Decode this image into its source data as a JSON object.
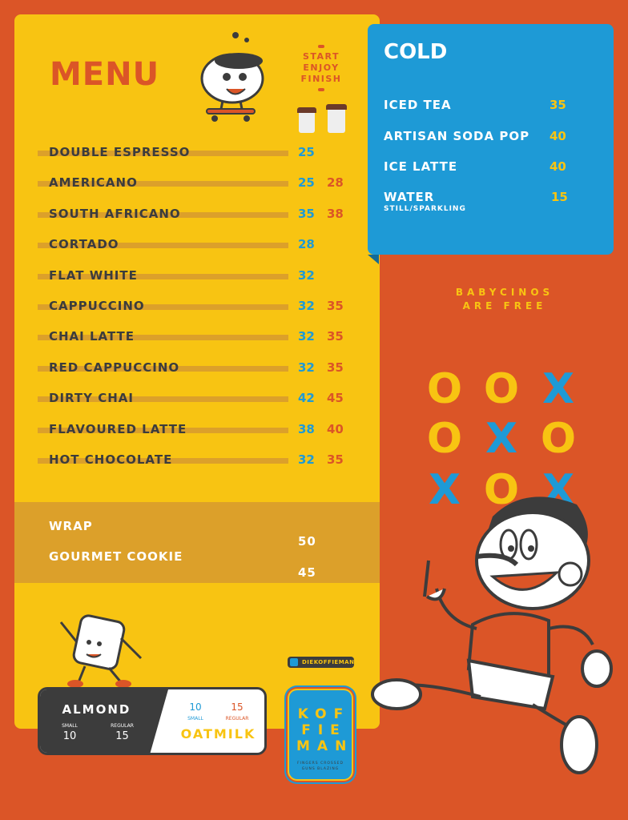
{
  "menu": {
    "title": "MENU",
    "slogan": [
      "START",
      "ENJOY",
      "FINISH"
    ],
    "items": [
      {
        "name": "DOUBLE ESPRESSO",
        "small": "25",
        "regular": ""
      },
      {
        "name": "AMERICANO",
        "small": "25",
        "regular": "28"
      },
      {
        "name": "SOUTH AFRICANO",
        "small": "35",
        "regular": "38"
      },
      {
        "name": "CORTADO",
        "small": "28",
        "regular": ""
      },
      {
        "name": "FLAT WHITE",
        "small": "32",
        "regular": ""
      },
      {
        "name": "CAPPUCCINO",
        "small": "32",
        "regular": "35"
      },
      {
        "name": "CHAI LATTE",
        "small": "32",
        "regular": "35"
      },
      {
        "name": "RED CAPPUCCINO",
        "small": "32",
        "regular": "35"
      },
      {
        "name": "DIRTY CHAI",
        "small": "42",
        "regular": "45"
      },
      {
        "name": "FLAVOURED LATTE",
        "small": "38",
        "regular": "40"
      },
      {
        "name": "HOT CHOCOLATE",
        "small": "32",
        "regular": "35"
      }
    ]
  },
  "food": [
    {
      "name": "WRAP",
      "price": "50"
    },
    {
      "name": "GOURMET COOKIE",
      "price": "45"
    }
  ],
  "cold": {
    "title": "COLD",
    "items": [
      {
        "name": "ICED TEA",
        "price": "35",
        "note": ""
      },
      {
        "name": "ARTISAN SODA POP",
        "price": "40",
        "note": ""
      },
      {
        "name": "ICE LATTE",
        "price": "40",
        "note": ""
      },
      {
        "name": "WATER",
        "price": "15",
        "note": "STILL/SPARKLING"
      }
    ]
  },
  "babycinos": [
    "BABYCINOS",
    "ARE FREE"
  ],
  "tictactoe": [
    [
      "O",
      "O",
      "X"
    ],
    [
      "O",
      "X",
      "O"
    ],
    [
      "X",
      "O",
      "X"
    ]
  ],
  "milk": {
    "almond": {
      "label": "ALMOND",
      "small_label": "SMALL",
      "regular_label": "REGULAR",
      "small": "10",
      "regular": "15"
    },
    "oatmilk": {
      "label": "OATMILK",
      "small_label": "SMALL",
      "regular_label": "REGULAR",
      "small": "10",
      "regular": "15"
    }
  },
  "social": {
    "handle": "DIEKOFFIEMAN",
    "icon": "instagram-icon"
  },
  "logo": {
    "text": "KOFFIEMAN",
    "lines": [
      "KOF",
      "FIE",
      "MAN"
    ],
    "tagline": [
      "FINGERS CROSSED",
      "GUNS BLAZING"
    ]
  },
  "colors": {
    "background": "#DB5527",
    "yellow": "#F8C412",
    "blue": "#1E9AD6",
    "dark": "#3C3C3C"
  }
}
